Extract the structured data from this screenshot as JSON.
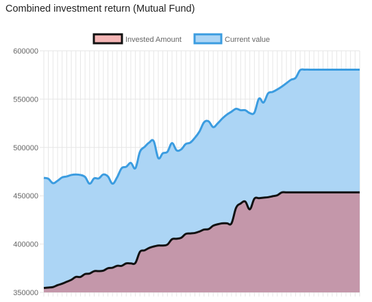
{
  "page": {
    "title": "Combined investment return (Mutual Fund)"
  },
  "colors": {
    "invested_fill": "#c497aa",
    "invested_line": "#111111",
    "invested_legend_fill": "#f4b6b6",
    "current_fill": "#acd5f5",
    "current_line": "#3b9ce0",
    "grid": "#e6e6e6",
    "axis_text": "#666666"
  },
  "chart_data": {
    "type": "area",
    "title": "Combined investment return (Mutual Fund)",
    "legend": {
      "position": "top",
      "items": [
        "Invested Amount",
        "Current value"
      ]
    },
    "grid": true,
    "ylim": [
      350000,
      600000
    ],
    "yticks": [
      350000,
      400000,
      450000,
      500000,
      550000,
      600000
    ],
    "x": [
      1,
      2,
      3,
      4,
      5,
      6,
      7,
      8,
      9,
      10,
      11,
      12,
      13,
      14,
      15,
      16,
      17,
      18,
      19,
      20,
      21,
      22,
      23,
      24,
      25,
      26,
      27,
      28,
      29,
      30,
      31,
      32,
      33,
      34,
      35,
      36,
      37,
      38,
      39,
      40,
      41,
      42,
      43,
      44,
      45,
      46,
      47,
      48,
      49,
      50,
      51,
      52,
      53,
      54,
      55,
      56,
      57,
      58,
      59,
      60,
      61,
      62,
      63,
      64,
      65,
      66,
      67,
      68,
      69,
      70
    ],
    "series": [
      {
        "name": "Invested Amount",
        "values": [
          354500,
          355000,
          355500,
          357500,
          359000,
          361000,
          363000,
          366000,
          366000,
          369000,
          369500,
          372000,
          372000,
          372500,
          375000,
          375500,
          377500,
          377500,
          380000,
          380000,
          380500,
          392000,
          393500,
          396000,
          397500,
          398500,
          398500,
          399500,
          405000,
          405500,
          406500,
          410500,
          411000,
          411500,
          413000,
          415000,
          415500,
          419000,
          420500,
          421500,
          421500,
          421500,
          437500,
          442000,
          444000,
          436000,
          447000,
          447500,
          448000,
          448500,
          449500,
          450500,
          453500,
          453500,
          453500,
          453500,
          453500,
          453500,
          453500,
          453500,
          453500,
          453500,
          453500,
          453500,
          453500,
          453500,
          453500,
          453500,
          453500,
          453500
        ]
      },
      {
        "name": "Current value",
        "values": [
          468500,
          467500,
          463000,
          465500,
          469000,
          470000,
          471500,
          472000,
          471500,
          469500,
          462500,
          468000,
          468000,
          472000,
          470000,
          462500,
          469000,
          478500,
          480000,
          484000,
          478500,
          495500,
          500500,
          505000,
          506500,
          489000,
          494000,
          495500,
          504500,
          497000,
          498000,
          503500,
          505000,
          510000,
          516500,
          526000,
          527000,
          521000,
          525000,
          530000,
          534000,
          537000,
          540000,
          538500,
          538500,
          535500,
          536000,
          550500,
          546500,
          556000,
          557500,
          560000,
          563000,
          566500,
          570000,
          572000,
          580000,
          580500,
          580500,
          580500,
          580500,
          580500,
          580500,
          580500,
          580500,
          580500,
          580500,
          580500,
          580500,
          580500
        ]
      }
    ]
  }
}
